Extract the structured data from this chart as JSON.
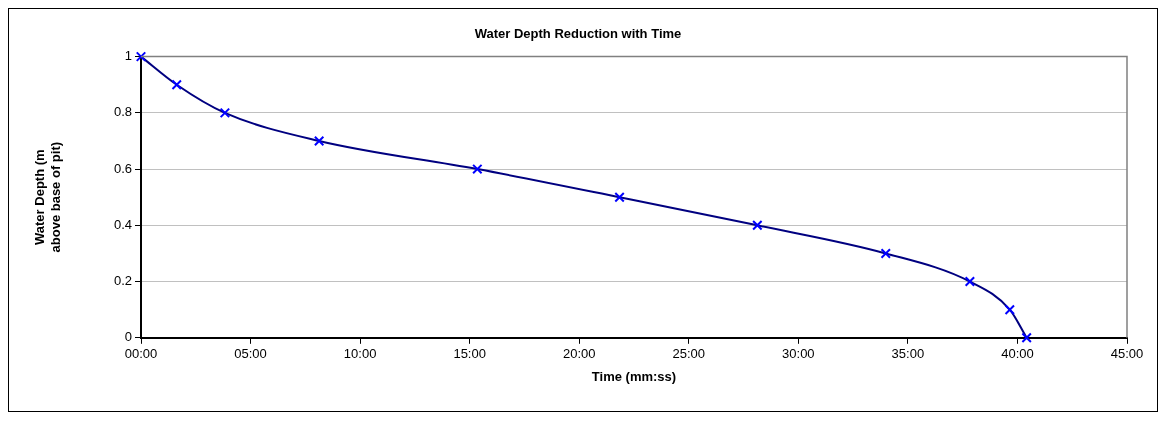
{
  "chart_data": {
    "type": "line",
    "title": "Water Depth Reduction with Time",
    "xlabel": "Time (mm:ss)",
    "ylabel": "Water Depth (m above base of pit)",
    "series": [
      {
        "color": "#000080",
        "colors": [
          "#0000ff",
          "#0000ff",
          "#0000ff",
          "#0000ff",
          "#0000ff",
          "#0000ff",
          "#0000ff",
          "#0000ff",
          "#0000ff",
          "#0000ff",
          "#0000ff"
        ],
        "x": [
          0,
          1.63,
          3.83,
          8.13,
          15.35,
          21.84,
          28.13,
          33.99,
          37.83,
          39.65,
          40.42
        ],
        "values": [
          1,
          0.9,
          0.8,
          0.7,
          0.6,
          0.5,
          0.4,
          0.3,
          0.2,
          0.1,
          0
        ]
      }
    ],
    "xlim": [
      0,
      45
    ],
    "xticks": [
      {
        "value": 0,
        "label": "00:00"
      },
      {
        "value": 5,
        "label": "05:00"
      },
      {
        "value": 10,
        "label": "10:00"
      },
      {
        "value": 15,
        "label": "15:00"
      },
      {
        "value": 20,
        "label": "20:00"
      },
      {
        "value": 25,
        "label": "25:00"
      },
      {
        "value": 30,
        "label": "30:00"
      },
      {
        "value": 35,
        "label": "35:00"
      },
      {
        "value": 40,
        "label": "40:00"
      },
      {
        "value": 45,
        "label": "45:00"
      }
    ],
    "ylim": [
      0,
      1
    ],
    "yticks": [
      0,
      0.2,
      0.4,
      0.6,
      0.8,
      1
    ],
    "grid": "y",
    "legend": false,
    "marker": "cross",
    "line_style": "solid"
  }
}
